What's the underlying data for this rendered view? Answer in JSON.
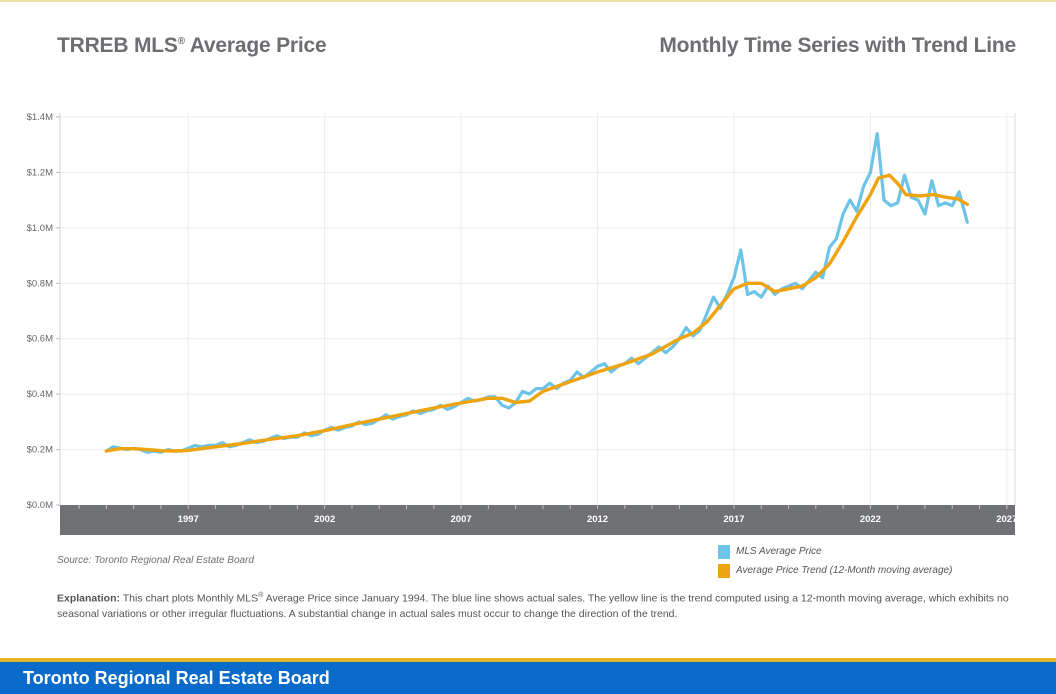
{
  "header": {
    "title_left": "TRREB MLS",
    "title_left_reg": "®",
    "title_left_rest": " Average Price",
    "title_right": "Monthly Time Series with Trend Line"
  },
  "source": "Source: Toronto Regional Real Estate Board",
  "explanation": {
    "label": "Explanation:",
    "text_1": " This chart plots Monthly MLS",
    "reg": "®",
    "text_2": " Average Price since January 1994. The blue line shows actual sales. The yellow line is the trend computed using a 12-month moving average, which exhibits no seasonal variations or other irregular fluctuations. A substantial change in actual sales must occur to change the direction of the trend."
  },
  "footer": {
    "title": "Toronto Regional Real Estate Board"
  },
  "colors": {
    "mls": "#6ec3e8",
    "trend": "#eea40f",
    "axis_band": "#6f7174",
    "footer": "#0a6bcb",
    "footer_line": "#e3b228"
  },
  "chart_data": {
    "type": "line",
    "xlabel": "",
    "ylabel": "",
    "xlim": [
      1992.3,
      2027.3
    ],
    "ylim": [
      0,
      1.4
    ],
    "y_ticks": [
      0,
      0.2,
      0.4,
      0.6,
      0.8,
      1.0,
      1.2,
      1.4
    ],
    "y_tick_labels": [
      "$0.0M",
      "$0.2M",
      "$0.4M",
      "$0.6M",
      "$0.8M",
      "$1.0M",
      "$1.2M",
      "$1.4M"
    ],
    "x_ticks": [
      1997,
      2002,
      2007,
      2012,
      2017,
      2022,
      2027
    ],
    "x_tick_labels": [
      "1997",
      "2002",
      "2007",
      "2012",
      "2017",
      "2022",
      "2027"
    ],
    "grid": true,
    "legend_position": "bottom-right",
    "series": [
      {
        "name": "MLS Average Price",
        "color": "#6ec3e8",
        "x": [
          1994.0,
          1994.25,
          1994.5,
          1994.75,
          1995.0,
          1995.25,
          1995.5,
          1995.75,
          1996.0,
          1996.25,
          1996.5,
          1996.75,
          1997.0,
          1997.25,
          1997.5,
          1997.75,
          1998.0,
          1998.25,
          1998.5,
          1998.75,
          1999.0,
          1999.25,
          1999.5,
          1999.75,
          2000.0,
          2000.25,
          2000.5,
          2000.75,
          2001.0,
          2001.25,
          2001.5,
          2001.75,
          2002.0,
          2002.25,
          2002.5,
          2002.75,
          2003.0,
          2003.25,
          2003.5,
          2003.75,
          2004.0,
          2004.25,
          2004.5,
          2004.75,
          2005.0,
          2005.25,
          2005.5,
          2005.75,
          2006.0,
          2006.25,
          2006.5,
          2006.75,
          2007.0,
          2007.25,
          2007.5,
          2007.75,
          2008.0,
          2008.25,
          2008.5,
          2008.75,
          2009.0,
          2009.25,
          2009.5,
          2009.75,
          2010.0,
          2010.25,
          2010.5,
          2010.75,
          2011.0,
          2011.25,
          2011.5,
          2011.75,
          2012.0,
          2012.25,
          2012.5,
          2012.75,
          2013.0,
          2013.25,
          2013.5,
          2013.75,
          2014.0,
          2014.25,
          2014.5,
          2014.75,
          2015.0,
          2015.25,
          2015.5,
          2015.75,
          2016.0,
          2016.25,
          2016.5,
          2016.75,
          2017.0,
          2017.25,
          2017.5,
          2017.75,
          2018.0,
          2018.25,
          2018.5,
          2018.75,
          2019.0,
          2019.25,
          2019.5,
          2019.75,
          2020.0,
          2020.25,
          2020.5,
          2020.75,
          2021.0,
          2021.25,
          2021.5,
          2021.75,
          2022.0,
          2022.25,
          2022.5,
          2022.75,
          2023.0,
          2023.25,
          2023.5,
          2023.75,
          2024.0,
          2024.25,
          2024.5,
          2024.75,
          2025.0,
          2025.25,
          2025.55
        ],
        "values": [
          0.195,
          0.21,
          0.205,
          0.2,
          0.205,
          0.2,
          0.19,
          0.195,
          0.19,
          0.2,
          0.195,
          0.195,
          0.205,
          0.215,
          0.21,
          0.215,
          0.215,
          0.225,
          0.21,
          0.215,
          0.225,
          0.235,
          0.225,
          0.23,
          0.24,
          0.25,
          0.24,
          0.245,
          0.245,
          0.26,
          0.25,
          0.255,
          0.27,
          0.28,
          0.27,
          0.28,
          0.285,
          0.3,
          0.29,
          0.295,
          0.31,
          0.325,
          0.31,
          0.32,
          0.325,
          0.34,
          0.33,
          0.34,
          0.345,
          0.36,
          0.345,
          0.355,
          0.37,
          0.385,
          0.375,
          0.38,
          0.39,
          0.39,
          0.36,
          0.35,
          0.37,
          0.41,
          0.4,
          0.42,
          0.42,
          0.44,
          0.42,
          0.44,
          0.45,
          0.48,
          0.46,
          0.48,
          0.5,
          0.51,
          0.48,
          0.5,
          0.51,
          0.53,
          0.51,
          0.53,
          0.55,
          0.57,
          0.55,
          0.57,
          0.6,
          0.64,
          0.61,
          0.63,
          0.69,
          0.75,
          0.71,
          0.76,
          0.82,
          0.92,
          0.76,
          0.77,
          0.75,
          0.79,
          0.76,
          0.78,
          0.79,
          0.8,
          0.78,
          0.81,
          0.84,
          0.82,
          0.93,
          0.96,
          1.05,
          1.1,
          1.06,
          1.15,
          1.2,
          1.34,
          1.1,
          1.08,
          1.09,
          1.19,
          1.11,
          1.1,
          1.05,
          1.17,
          1.08,
          1.09,
          1.08,
          1.13,
          1.02
        ]
      },
      {
        "name": "Average Price Trend (12-Month moving average)",
        "color": "#eea40f",
        "x": [
          1994.0,
          1994.5,
          1995.0,
          1995.5,
          1996.0,
          1996.5,
          1997.0,
          1998.0,
          1999.0,
          2000.0,
          2001.0,
          2002.0,
          2003.0,
          2004.0,
          2005.0,
          2006.0,
          2007.0,
          2008.0,
          2008.5,
          2009.0,
          2009.5,
          2010.0,
          2011.0,
          2012.0,
          2013.0,
          2014.0,
          2015.0,
          2015.5,
          2016.0,
          2016.5,
          2017.0,
          2017.5,
          2018.0,
          2018.5,
          2019.0,
          2019.5,
          2020.0,
          2020.5,
          2021.0,
          2021.5,
          2022.0,
          2022.3,
          2022.7,
          2023.0,
          2023.3,
          2023.8,
          2024.3,
          2024.8,
          2025.2,
          2025.55
        ],
        "values": [
          0.195,
          0.203,
          0.203,
          0.2,
          0.196,
          0.195,
          0.197,
          0.21,
          0.222,
          0.237,
          0.25,
          0.268,
          0.29,
          0.31,
          0.33,
          0.35,
          0.368,
          0.385,
          0.385,
          0.37,
          0.375,
          0.41,
          0.445,
          0.48,
          0.51,
          0.545,
          0.6,
          0.62,
          0.66,
          0.72,
          0.78,
          0.8,
          0.8,
          0.77,
          0.78,
          0.79,
          0.82,
          0.87,
          0.95,
          1.04,
          1.12,
          1.18,
          1.19,
          1.16,
          1.12,
          1.115,
          1.12,
          1.11,
          1.105,
          1.085
        ]
      }
    ]
  }
}
